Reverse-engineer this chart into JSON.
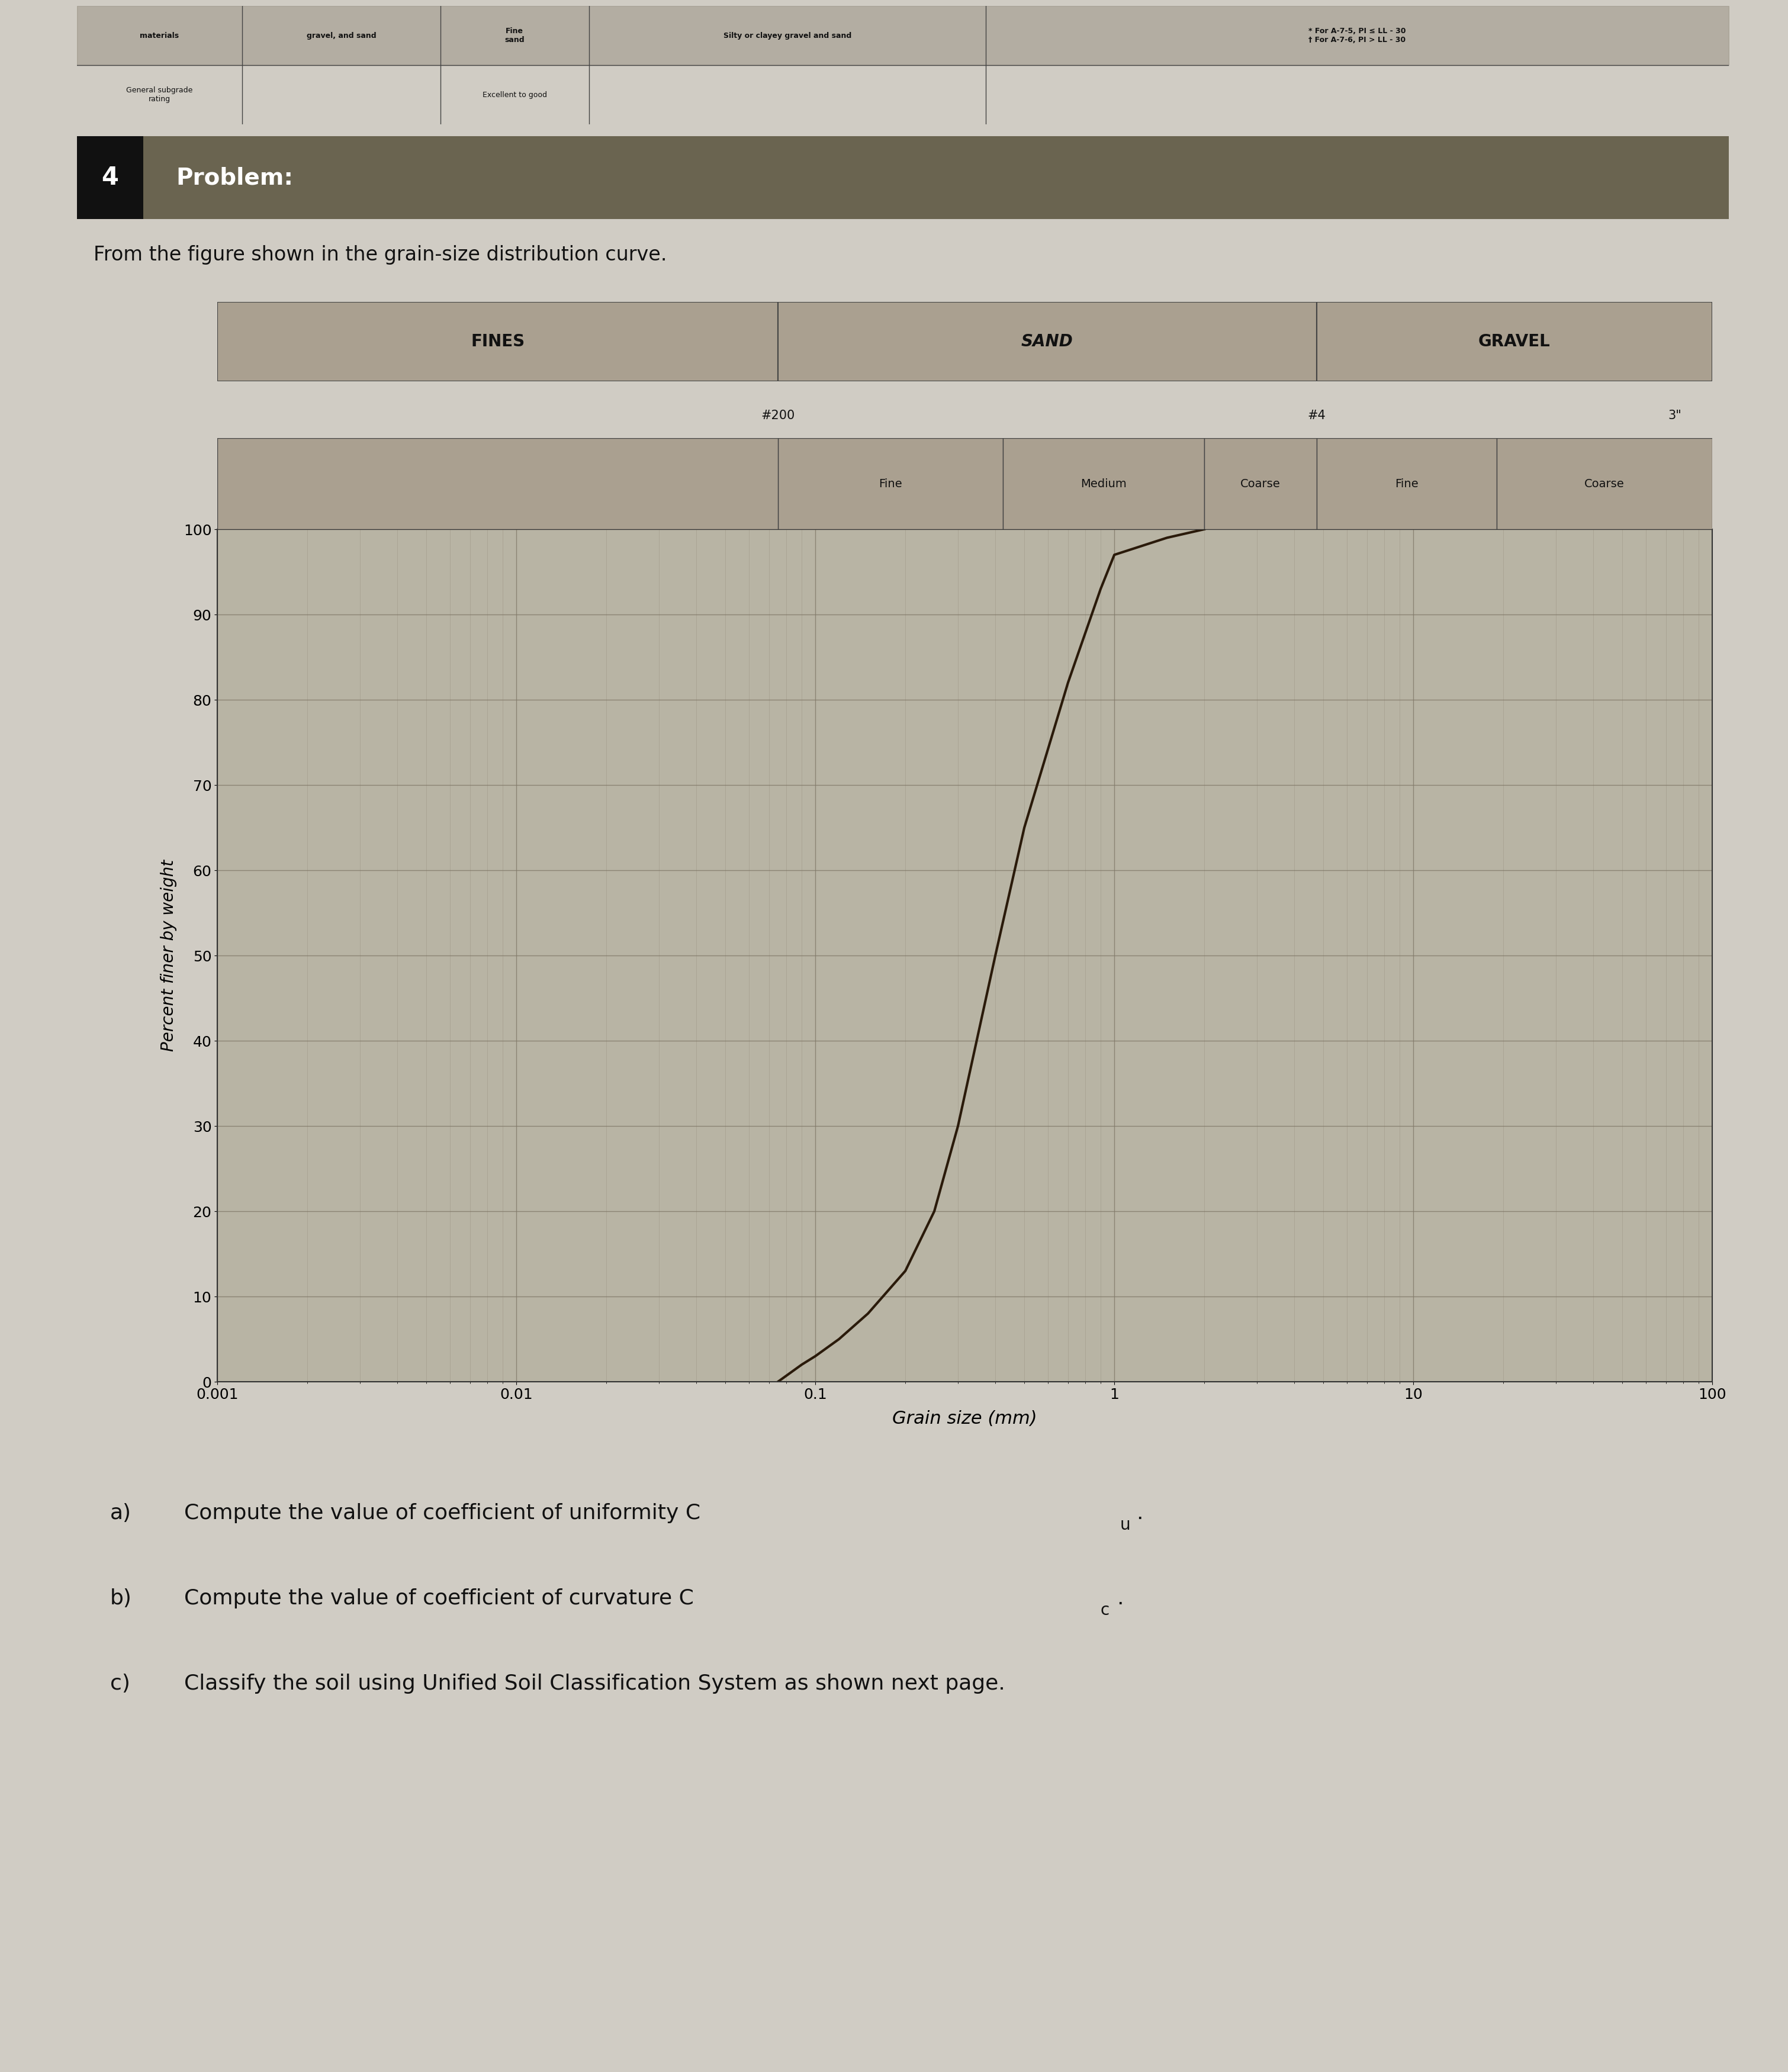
{
  "page_bg": "#d0ccc4",
  "table_bg": "#c0bcb4",
  "chart_bg": "#b0ac9c",
  "chart_inner_bg": "#b8b4a4",
  "problem_header_number_bg": "#111111",
  "problem_header_title_bg": "#6a6450",
  "problem_number": "4",
  "problem_title": "Problem:",
  "intro_text": "From the figure shown in the grain-size distribution curve.",
  "fines_label": "FINES",
  "sand_label": "SAND",
  "gravel_label": "GRAVEL",
  "fine_sand_label": "Fine",
  "medium_sand_label": "Medium",
  "coarse_sand_label": "Coarse",
  "fine_gravel_label": "Fine",
  "coarse_gravel_label": "Coarse",
  "sieve200_label": "#200",
  "sieve4_label": "#4",
  "sieve3in_label": "3\"",
  "ylabel": "Percent finer by weight",
  "xlabel": "Grain size (mm)",
  "yticks": [
    0,
    10,
    20,
    30,
    40,
    50,
    60,
    70,
    80,
    90,
    100
  ],
  "curve_x": [
    0.075,
    0.09,
    0.1,
    0.12,
    0.15,
    0.2,
    0.25,
    0.3,
    0.4,
    0.5,
    0.7,
    0.9,
    1.0,
    1.5,
    2.0
  ],
  "curve_y": [
    0,
    2,
    3,
    5,
    8,
    13,
    20,
    30,
    50,
    65,
    82,
    93,
    97,
    99,
    100
  ],
  "curve_color": "#2a1a0a",
  "curve_linewidth": 3.0,
  "grid_major_color": "#807868",
  "grid_minor_color": "#989080",
  "q_a": "a)",
  "q_b": "b)",
  "q_c": "c)",
  "q_a_text": "Compute the value of coefficient of uniformity C",
  "q_a_sub": "u",
  "q_b_text": "Compute the value of coefficient of curvature C",
  "q_b_sub": "c",
  "q_c_text": "Classify the soil using Unified Soil Classification System as shown next page.",
  "hand_bg": "#a09888",
  "table_col1_row1": "materials",
  "table_col2_row1": "gravel, and sand",
  "table_col3_row1": "Fine\nsand",
  "table_col4_row1": "Silty or clayey gravel and sand",
  "table_col5_row1": "* For A-7-5, PI ≤ LL - 30\n† For A-7-6, PI > LL - 30",
  "table_col1_row2": "General subgrade\nrating",
  "table_col3_row2": "Excellent to good"
}
